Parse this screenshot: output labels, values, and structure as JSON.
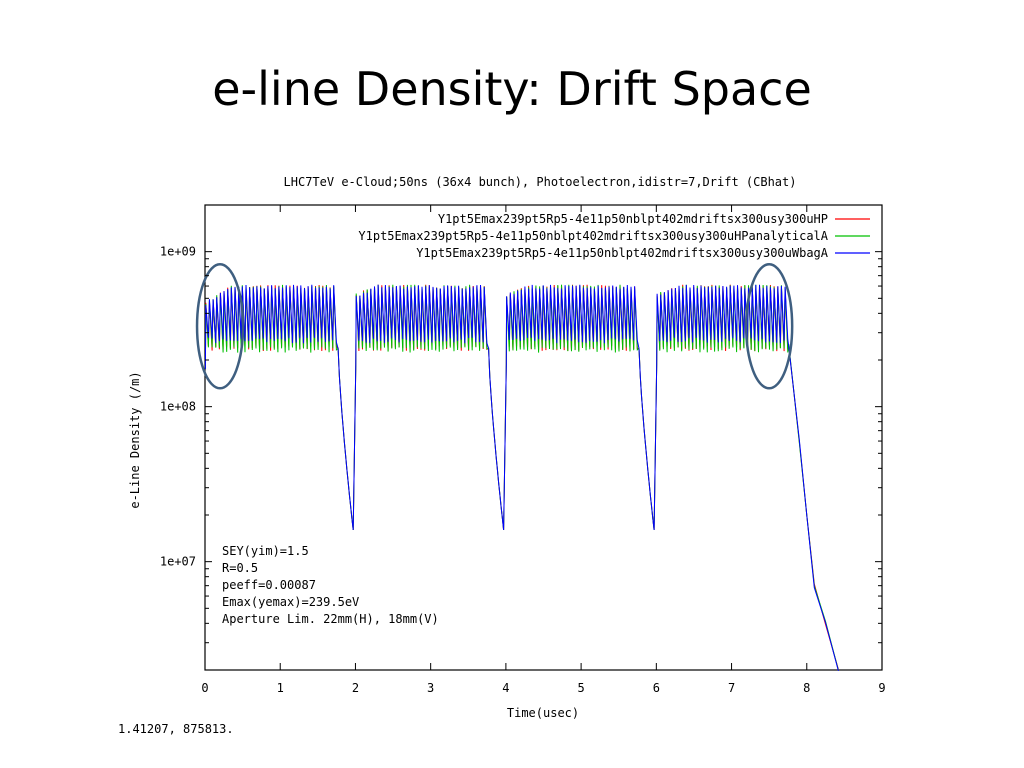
{
  "slide": {
    "title": "e-line Density: Drift Space"
  },
  "status": {
    "coordinates": "1.41207,  875813."
  },
  "chart_data": {
    "type": "line",
    "title": "LHC7TeV e-Cloud;50ns (36x4 bunch), Photoelectron,idistr=7,Drift (CBhat)",
    "xlabel": "Time(usec)",
    "ylabel": "e-Line Density (/m)",
    "xlim": [
      0,
      9
    ],
    "ylim": [
      2000000,
      2000000000
    ],
    "yscale": "log",
    "xticks": [
      0,
      1,
      2,
      3,
      4,
      5,
      6,
      7,
      8,
      9
    ],
    "xtick_labels": [
      "0",
      "1",
      "2",
      "3",
      "4",
      "5",
      "6",
      "7",
      "8",
      "9"
    ],
    "yticks": [
      10000000,
      100000000,
      1000000000
    ],
    "ytick_labels": [
      "1e+07",
      "1e+08",
      "1e+09"
    ],
    "legend_position": "top-right",
    "annotations": [
      "SEY(yim)=1.5",
      "R=0.5",
      "peeff=0.00087",
      "Emax(yemax)=239.5eV",
      "Aperture Lim. 22mm(H), 18mm(V)"
    ],
    "bunch_trains": [
      {
        "start": 0.0,
        "end": 1.75,
        "bunches": 36,
        "peak": 600000000,
        "trough": 250000000
      },
      {
        "start": 2.0,
        "end": 3.75,
        "bunches": 36,
        "peak": 600000000,
        "trough": 250000000
      },
      {
        "start": 4.0,
        "end": 5.75,
        "bunches": 36,
        "peak": 600000000,
        "trough": 250000000
      },
      {
        "start": 6.0,
        "end": 7.75,
        "bunches": 36,
        "peak": 600000000,
        "trough": 250000000
      }
    ],
    "gap_minima": [
      {
        "x": 1.97,
        "y": 16000000
      },
      {
        "x": 3.97,
        "y": 16000000
      },
      {
        "x": 5.97,
        "y": 16000000
      }
    ],
    "tail_decay": [
      {
        "x": 7.76,
        "y": 250000000
      },
      {
        "x": 7.9,
        "y": 60000000
      },
      {
        "x": 8.0,
        "y": 20000000
      },
      {
        "x": 8.1,
        "y": 7000000
      },
      {
        "x": 8.25,
        "y": 4000000
      },
      {
        "x": 8.42,
        "y": 2000000
      }
    ],
    "series": [
      {
        "name": "Y1pt5Emax239pt5Rp5-4e11p50nblpt402mdriftsx300usy300uHP",
        "color": "#ff0000"
      },
      {
        "name": "Y1pt5Emax239pt5Rp5-4e11p50nblpt402mdriftsx300usy300uHPanalyticalA",
        "color": "#00c000"
      },
      {
        "name": "Y1pt5Emax239pt5Rp5-4e11p50nblpt402mdriftsx300usy300uWbagA",
        "color": "#0000ff"
      }
    ],
    "highlight_circles": [
      {
        "x": 0.2,
        "y": 330000000
      },
      {
        "x": 7.5,
        "y": 330000000
      }
    ],
    "highlight_color": "#3f5f80"
  }
}
